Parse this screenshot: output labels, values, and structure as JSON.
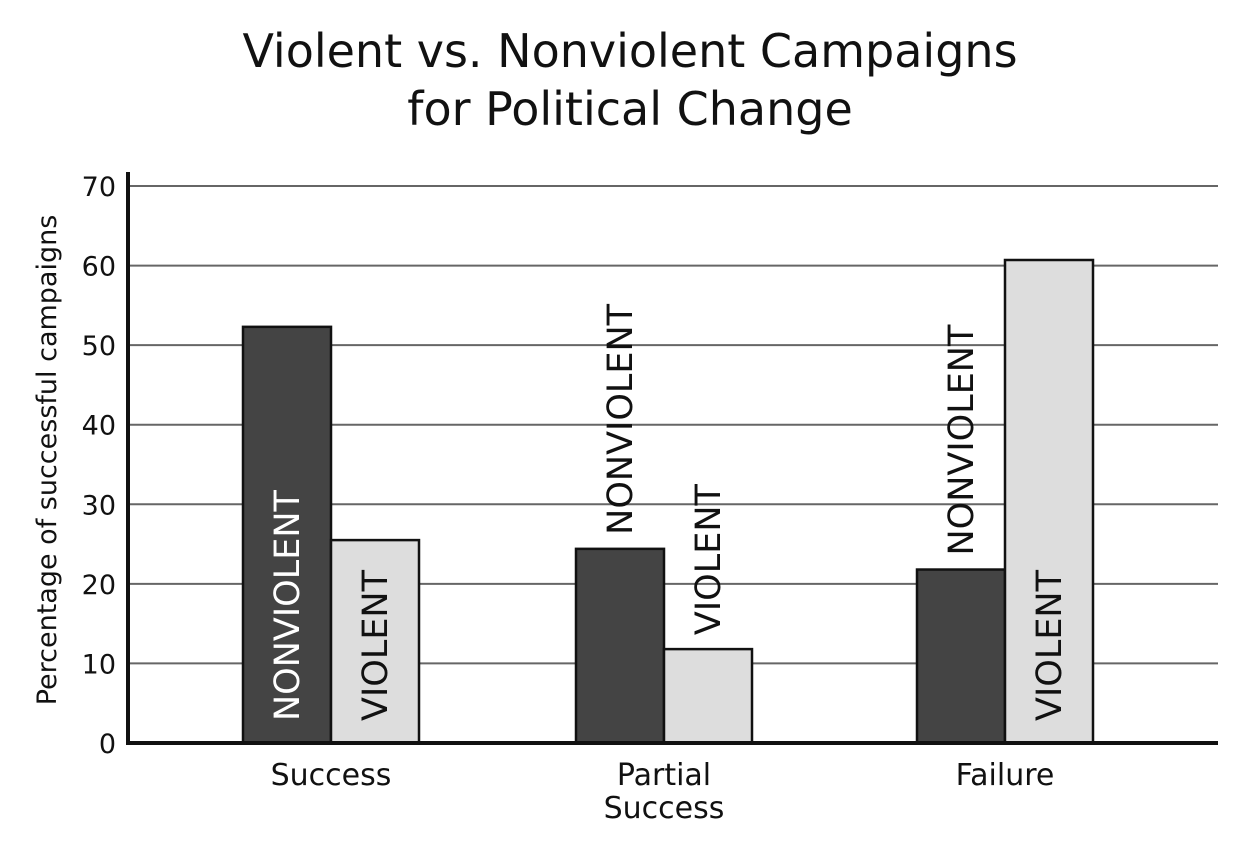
{
  "chart_data": {
    "type": "bar",
    "title": [
      "Violent vs. Nonviolent Campaigns",
      "for Political Change"
    ],
    "ylabel": "Percentage of successful campaigns",
    "xlabel": "",
    "ylim": [
      0,
      70
    ],
    "yticks": [
      "0",
      "10",
      "20",
      "30",
      "40",
      "50",
      "60",
      "70"
    ],
    "grid": true,
    "legend": "none",
    "categories": [
      [
        "Success"
      ],
      [
        "Partial",
        "Success"
      ],
      [
        "Failure"
      ]
    ],
    "series": [
      {
        "name": "NONVIOLENT",
        "color": "#444444",
        "values": [
          52.3,
          24.4,
          21.8
        ]
      },
      {
        "name": "VIOLENT",
        "color": "#dddddd",
        "values": [
          25.5,
          11.8,
          60.7
        ]
      }
    ]
  }
}
